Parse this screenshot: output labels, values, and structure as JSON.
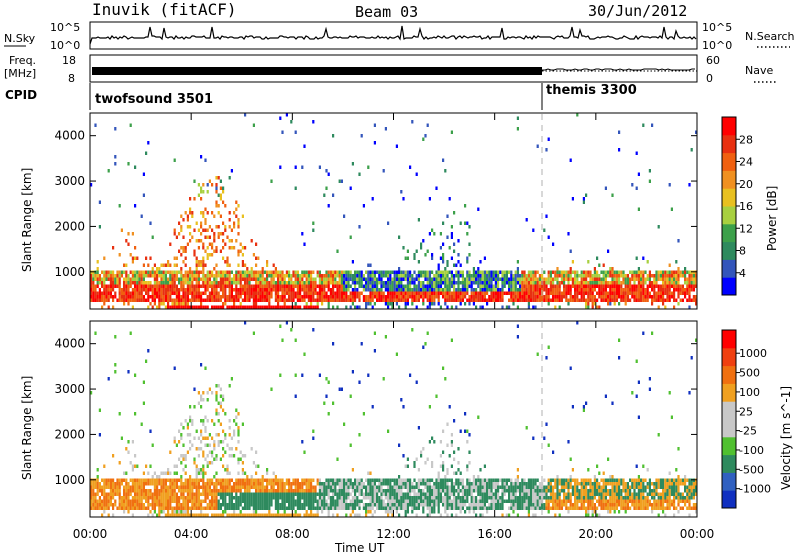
{
  "header": {
    "station": "Inuvik (fitACF)",
    "beam": "Beam 03",
    "date": "30/Jun/2012"
  },
  "status_panel": {
    "left_label": "N.Sky",
    "right_label": "N.Search",
    "ticks_left": [
      "10^5",
      "10^0"
    ],
    "ticks_right": [
      "10^5",
      "10^0"
    ]
  },
  "freq_panel": {
    "left_label_1": "Freq.",
    "left_label_2": "[MHz]",
    "right_label": "Nave",
    "ticks_left": [
      "18",
      "8"
    ],
    "ticks_right": [
      "60",
      "0"
    ]
  },
  "cpid_panel": {
    "label": "CPID",
    "modes": [
      {
        "name": "twofsound 3501",
        "start_hour": 0
      },
      {
        "name": "themis 3300",
        "start_hour": 18
      }
    ]
  },
  "chart_data": [
    {
      "type": "heatmap",
      "title": "Power",
      "ylabel": "Slant Range [km]",
      "xlabel": "Time UT",
      "yticks": [
        "1000",
        "2000",
        "3000",
        "4000"
      ],
      "xticks": [
        "00:00",
        "04:00",
        "08:00",
        "12:00",
        "16:00",
        "20:00",
        "00:00"
      ],
      "ylim": [
        180,
        4500
      ],
      "xlim_hours": [
        0,
        24
      ],
      "colorbar": {
        "label": "Power [dB]",
        "ticks": [
          "4",
          "8",
          "12",
          "16",
          "20",
          "24",
          "28"
        ],
        "colors": [
          "#0000ff",
          "#3355bb",
          "#2e8a5e",
          "#3ca04a",
          "#a8d040",
          "#e8c020",
          "#f09020",
          "#f06010",
          "#e83010",
          "#ff0000"
        ]
      },
      "scatter_band_km": [
        300,
        1000
      ]
    },
    {
      "type": "heatmap",
      "title": "Velocity",
      "ylabel": "Slant Range [km]",
      "xlabel": "Time UT",
      "yticks": [
        "1000",
        "2000",
        "3000",
        "4000"
      ],
      "xticks": [
        "00:00",
        "04:00",
        "08:00",
        "12:00",
        "16:00",
        "20:00",
        "00:00"
      ],
      "ylim": [
        180,
        4500
      ],
      "xlim_hours": [
        0,
        24
      ],
      "colorbar": {
        "label": "Velocity [m s^-1]",
        "ticks": [
          "1000",
          "500",
          "100",
          "25",
          "-25",
          "-100",
          "-500",
          "-1000"
        ],
        "colors": [
          "#1030c0",
          "#3060c0",
          "#2e8a5e",
          "#50c030",
          "#c8c8c8",
          "#c8c8c8",
          "#f0a020",
          "#f07010",
          "#f04010",
          "#ff0000"
        ]
      }
    }
  ]
}
